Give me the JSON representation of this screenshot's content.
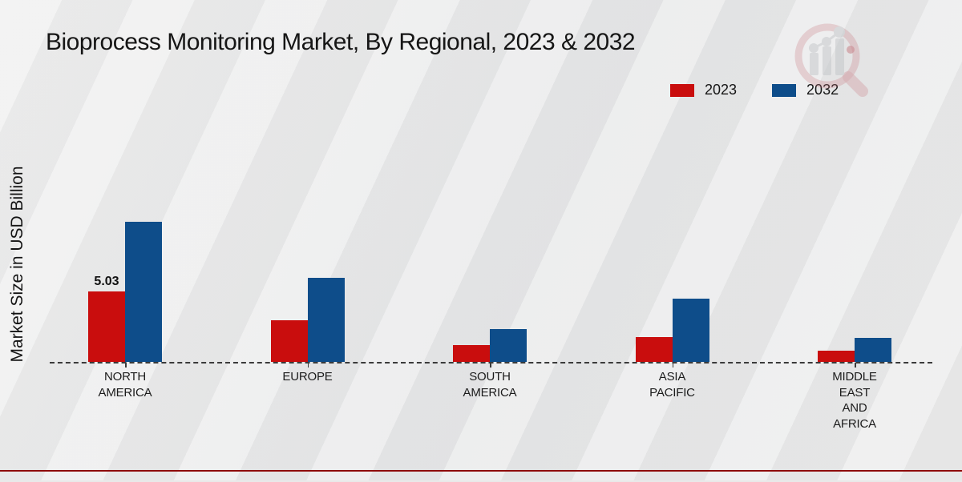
{
  "title": "Bioprocess Monitoring Market, By Regional, 2023 & 2032",
  "y_axis_label": "Market Size in USD Billion",
  "legend": {
    "items": [
      {
        "label": "2023",
        "color": "#c90d0d"
      },
      {
        "label": "2032",
        "color": "#0e4d8a"
      }
    ]
  },
  "chart_data": {
    "type": "bar",
    "title": "Bioprocess Monitoring Market, By Regional, 2023 & 2032",
    "xlabel": "",
    "ylabel": "Market Size in USD Billion",
    "categories": [
      "NORTH AMERICA",
      "EUROPE",
      "SOUTH AMERICA",
      "ASIA PACIFIC",
      "MIDDLE EAST AND AFRICA"
    ],
    "category_label_lines": [
      [
        "NORTH",
        "AMERICA"
      ],
      [
        "EUROPE"
      ],
      [
        "SOUTH",
        "AMERICA"
      ],
      [
        "ASIA",
        "PACIFIC"
      ],
      [
        "MIDDLE",
        "EAST",
        "AND",
        "AFRICA"
      ]
    ],
    "series": [
      {
        "name": "2023",
        "color": "#c90d0d",
        "values": [
          5.03,
          2.98,
          1.2,
          1.78,
          0.8
        ]
      },
      {
        "name": "2032",
        "color": "#0e4d8a",
        "values": [
          10.0,
          6.0,
          2.35,
          4.51,
          1.71
        ]
      }
    ],
    "data_labels": [
      {
        "series_index": 0,
        "category_index": 0,
        "text": "5.03"
      }
    ],
    "ylim": [
      0,
      11
    ],
    "grid": false,
    "legend_position": "top-right",
    "baseline_style": "dashed",
    "y_axis_ticks_visible": false
  },
  "footer": {
    "accent_color": "#b60404"
  }
}
